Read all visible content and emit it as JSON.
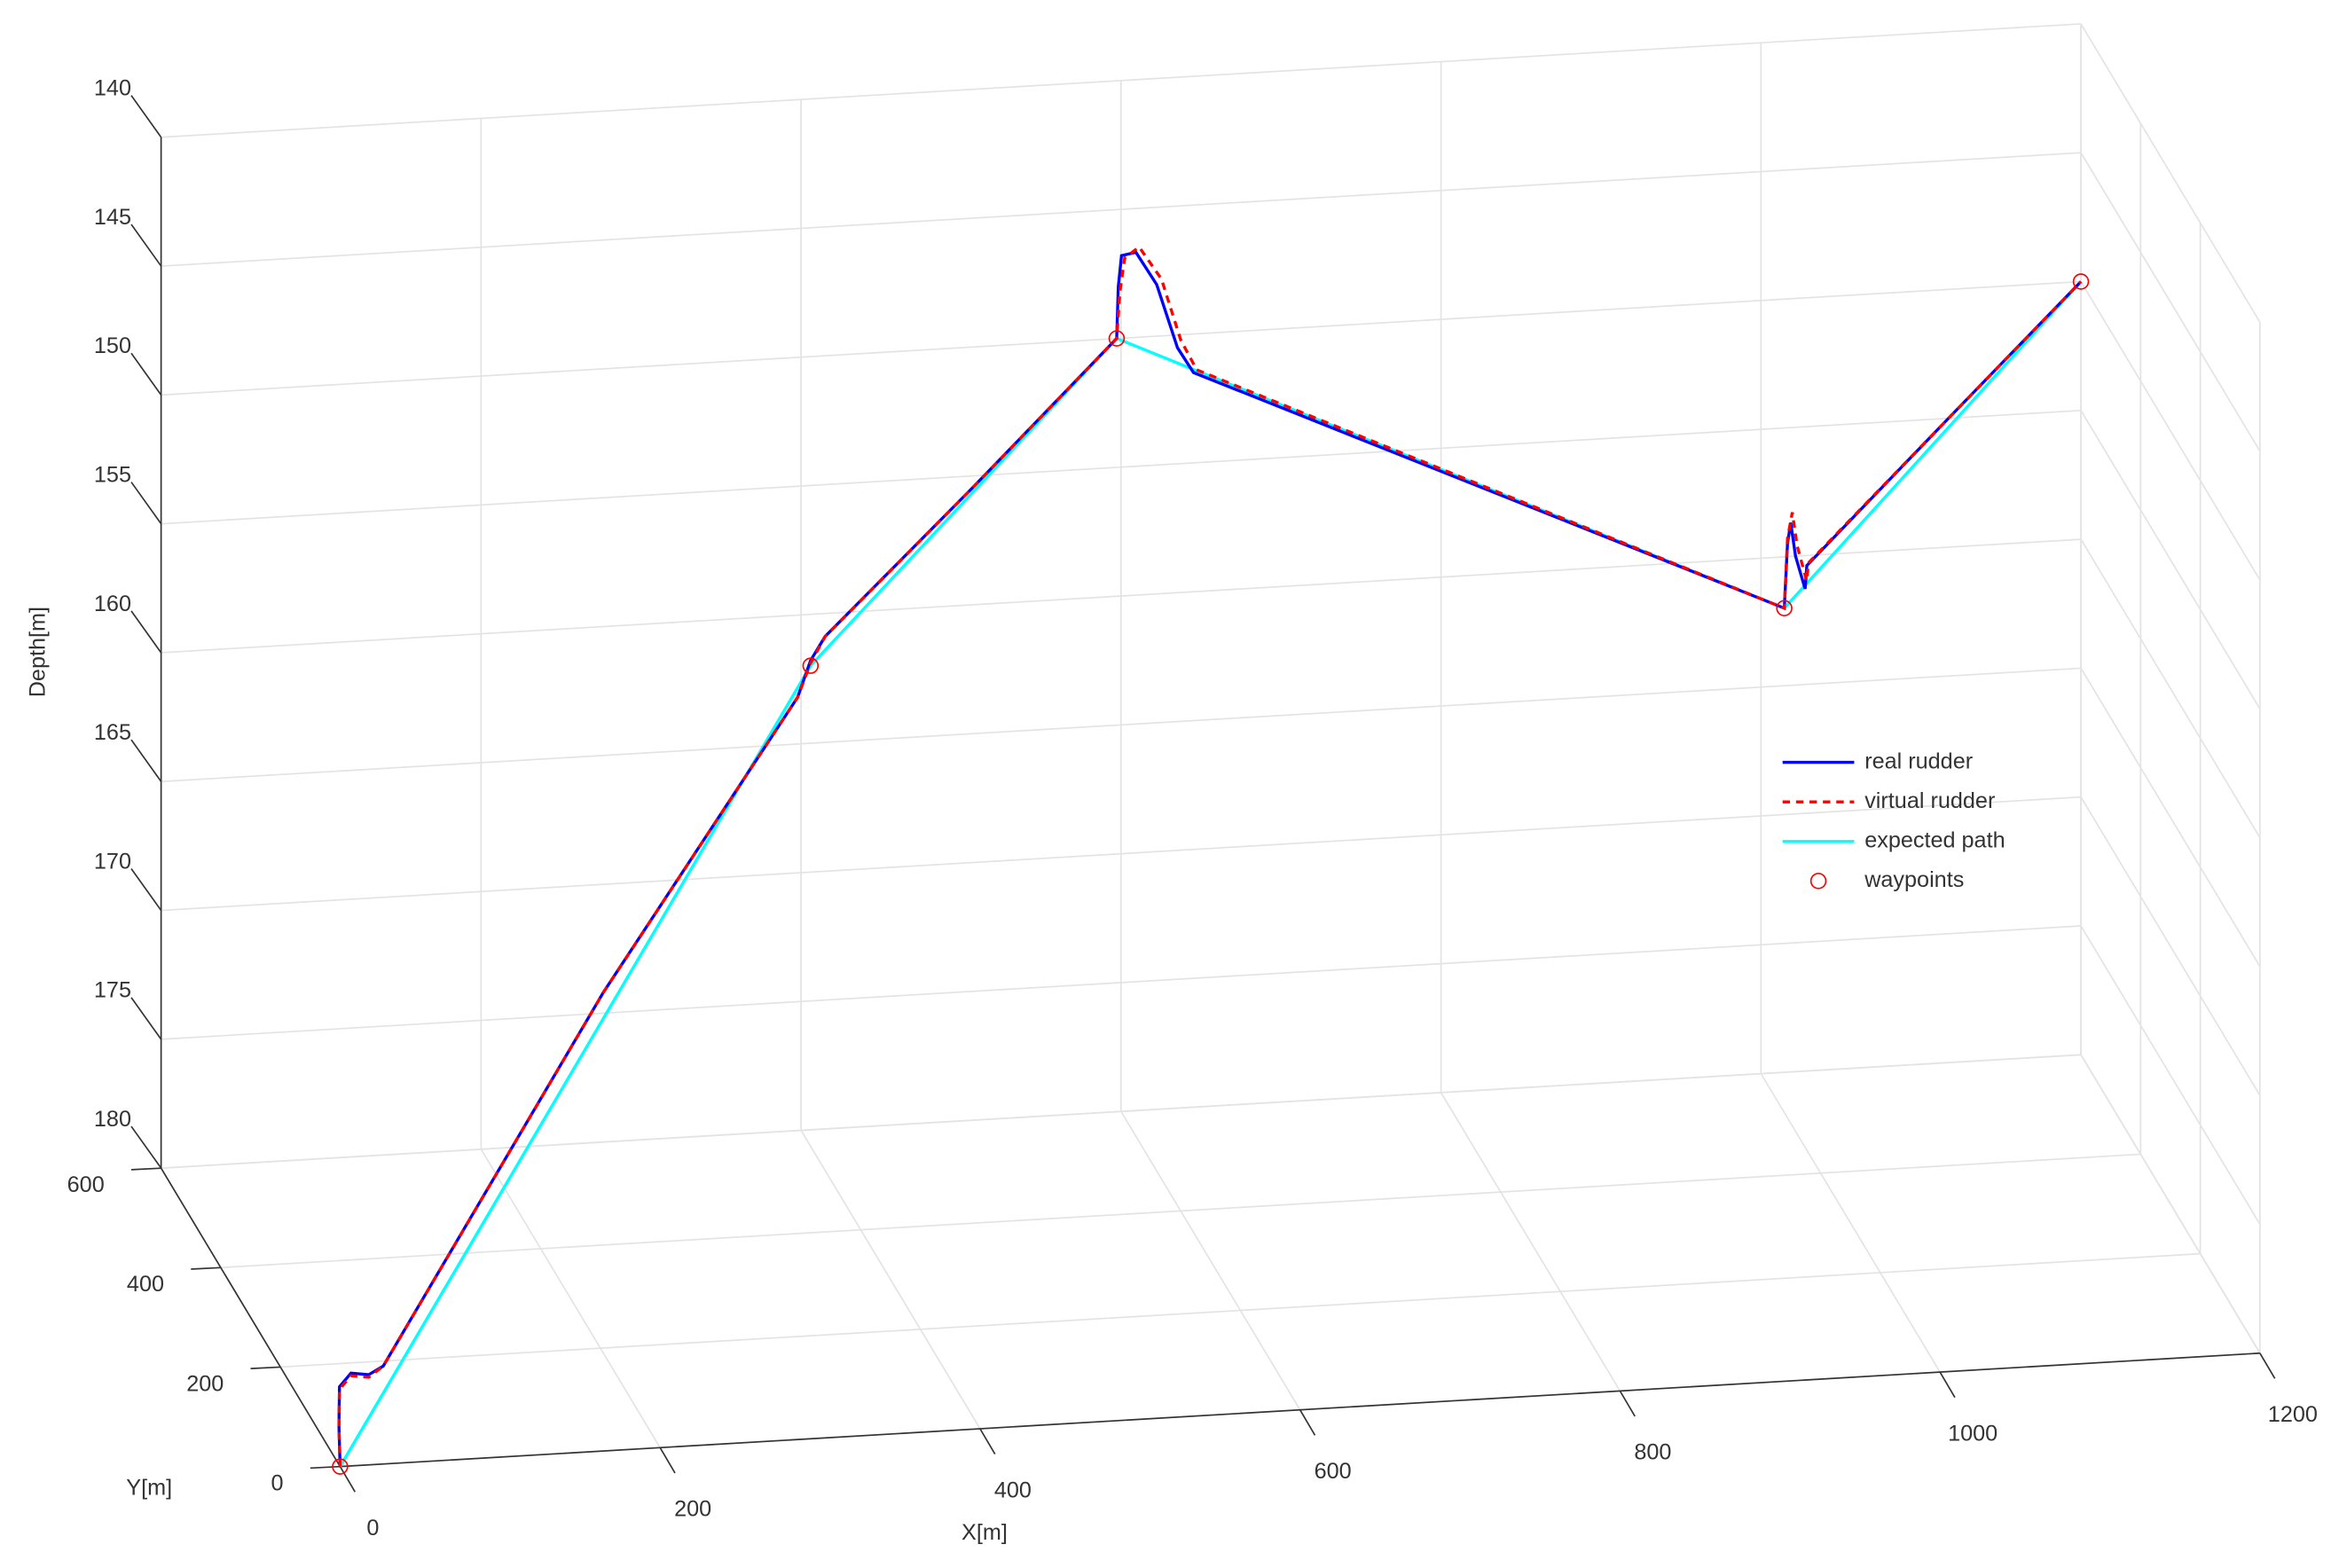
{
  "chart_data": {
    "type": "line3d",
    "xlabel": "X[m]",
    "ylabel": "Y[m]",
    "zlabel": "Depth[m]",
    "xlim": [
      0,
      1200
    ],
    "ylim": [
      0,
      600
    ],
    "zlim": [
      140,
      180
    ],
    "z_reversed": true,
    "xticks": [
      0,
      200,
      400,
      600,
      800,
      1000,
      1200
    ],
    "yticks": [
      0,
      200,
      400,
      600
    ],
    "zticks": [
      140,
      145,
      150,
      155,
      160,
      165,
      170,
      175,
      180
    ],
    "grid": true,
    "legend": "east",
    "series": [
      {
        "name": "expected path",
        "color": "#00ffff",
        "style": "solid",
        "x": [
          0,
          350,
          560,
          940,
          1200
        ],
        "y": [
          0,
          300,
          400,
          200,
          600
        ],
        "z": [
          180,
          156,
          146,
          154,
          150
        ]
      },
      {
        "name": "real rudder",
        "color": "#0000ff",
        "style": "solid",
        "x": [
          0,
          3,
          8,
          18,
          30,
          40,
          200,
          340,
          350,
          360,
          460,
          560,
          561,
          563,
          572,
          585,
          598,
          608,
          940,
          942,
          944,
          947,
          953,
          955,
          1080,
          1200
        ],
        "y": [
          0,
          20,
          45,
          60,
          65,
          70,
          190,
          290,
          300,
          305,
          350,
          400,
          400,
          400,
          400,
          400,
          400,
          400,
          200,
          200,
          200,
          200,
          200,
          205,
          400,
          600
        ],
        "z": [
          180,
          178.8,
          177.8,
          177.6,
          177.8,
          177.6,
          166,
          157,
          155.8,
          155,
          150.5,
          146,
          144,
          142.8,
          142.7,
          144,
          146.5,
          147.5,
          154,
          151.5,
          150.7,
          152,
          153.3,
          152.5,
          151,
          150
        ]
      },
      {
        "name": "virtual rudder",
        "color": "#ff0000",
        "style": "dashed",
        "x": [
          0,
          3,
          8,
          18,
          30,
          40,
          200,
          340,
          350,
          360,
          460,
          560,
          562,
          565,
          574,
          588,
          600,
          610,
          940,
          942,
          945,
          948,
          954,
          956,
          1080,
          1200
        ],
        "y": [
          0,
          20,
          45,
          60,
          65,
          70,
          190,
          290,
          300,
          305,
          350,
          400,
          400,
          400,
          400,
          400,
          400,
          400,
          200,
          200,
          200,
          200,
          200,
          205,
          400,
          600
        ],
        "z": [
          180,
          178.9,
          177.9,
          177.7,
          177.9,
          177.6,
          166,
          157,
          155.9,
          155,
          150.5,
          146,
          144.2,
          142.9,
          142.5,
          143.8,
          146.2,
          147.4,
          154,
          151.3,
          150.3,
          151.6,
          153,
          152.4,
          151,
          150
        ]
      }
    ],
    "waypoints": {
      "name": "waypoints",
      "color": "#ff0000",
      "x": [
        0,
        350,
        560,
        940,
        1200
      ],
      "y": [
        0,
        300,
        400,
        200,
        600
      ],
      "z": [
        180,
        156,
        146,
        154,
        150
      ]
    }
  }
}
